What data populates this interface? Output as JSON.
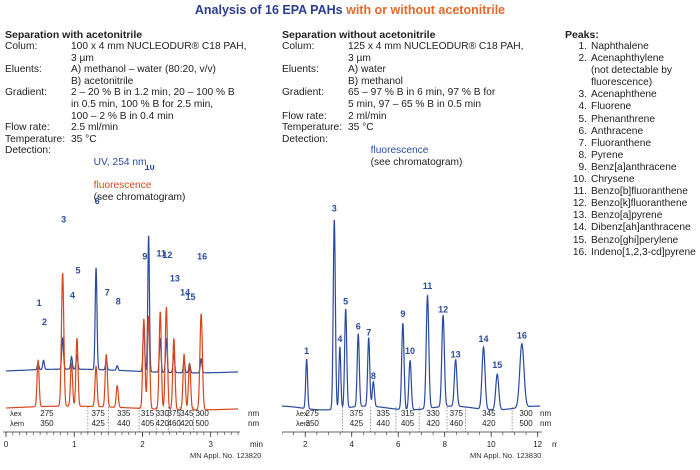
{
  "title": {
    "part1": "Analysis of 16 EPA PAHs",
    "part2": "with or without acetonitrile"
  },
  "left": {
    "heading": "Separation with acetonitrile",
    "params": [
      {
        "label": "Colum:",
        "value": "100 x 4 mm NUCLEODUR® C18 PAH,\n3 µm"
      },
      {
        "label": "Eluents:",
        "value": "A) methanol – water (80:20, v/v)\nB) acetonitrile"
      },
      {
        "label": "Gradient:",
        "value": "2 – 20 % B in 1.2 min, 20 – 100 % B\nin 0.5 min, 100 % B for 2.5 min,\n100 – 2 % B in 0.4 min"
      },
      {
        "label": "Flow rate:",
        "value": "2.5 ml/min"
      },
      {
        "label": "Temperature:",
        "value": "35 °C"
      }
    ],
    "detection_label": "Detection:",
    "detection_uv": "UV, 254 nm",
    "detection_fl": "fluorescence",
    "detection_note": "(see chromatogram)",
    "appl": "MN Appl. No. 123820"
  },
  "right": {
    "heading": "Separation without acetonitrile",
    "params": [
      {
        "label": "Colum:",
        "value": "125 x 4 mm NUCLEODUR® C18 PAH,\n3 µm"
      },
      {
        "label": "Eluents:",
        "value": "A) water\nB) methanol"
      },
      {
        "label": "Gradient:",
        "value": "65 – 97 % B in 6 min, 97 % B for\n5 min, 97 – 65 % B in 0.5 min"
      },
      {
        "label": "Flow rate:",
        "value": "2 ml/min"
      },
      {
        "label": "Temperature:",
        "value": "35 °C"
      }
    ],
    "detection_label": "Detection:",
    "detection_fl": "fluorescence",
    "detection_note": "(see chromatogram)",
    "appl": "MN Appl. No. 123830"
  },
  "peaks": {
    "heading": "Peaks:",
    "items": [
      {
        "num": "1.",
        "name": "Naphthalene"
      },
      {
        "num": "2.",
        "name": "Acenaphthylene"
      },
      {
        "num": "",
        "name": "(not detectable by"
      },
      {
        "num": "",
        "name": "fluorescence)"
      },
      {
        "num": "3.",
        "name": "Acenaphthene"
      },
      {
        "num": "4.",
        "name": "Fluorene"
      },
      {
        "num": "5.",
        "name": "Phenanthrene"
      },
      {
        "num": "6.",
        "name": "Anthracene"
      },
      {
        "num": "7.",
        "name": "Fluoranthene"
      },
      {
        "num": "8.",
        "name": "Pyrene"
      },
      {
        "num": "9.",
        "name": "Benz[a]anthracene"
      },
      {
        "num": "10.",
        "name": "Chrysene"
      },
      {
        "num": "11.",
        "name": "Benzo[b]fluoranthene"
      },
      {
        "num": "12.",
        "name": "Benzo[k]fluoranthene"
      },
      {
        "num": "13.",
        "name": "Benzo[a]pyrene"
      },
      {
        "num": "14.",
        "name": "Dibenz[ah]anthracene"
      },
      {
        "num": "15.",
        "name": "Benzo[ghi]perylene"
      },
      {
        "num": "16.",
        "name": "Indeno[1,2,3-cd]pyrene"
      }
    ]
  },
  "colors": {
    "uv": "#2a4aa0",
    "fluorescence": "#d9461b",
    "axis": "#333333"
  },
  "chart_data": [
    {
      "type": "line",
      "title": "Separation with acetonitrile",
      "xlabel": "min",
      "xlim": [
        0,
        3.4
      ],
      "ylim": [
        0,
        100
      ],
      "xticks": [
        0,
        1,
        2,
        3
      ],
      "minor_step": 0.1,
      "series": [
        {
          "name": "UV, 254 nm",
          "color": "#2a4aa0",
          "baseline": 33,
          "peaks": [
            {
              "label": "1",
              "t": 0.47,
              "h": 4,
              "w": 0.012
            },
            {
              "label": "2",
              "t": 0.55,
              "h": 6,
              "w": 0.012
            },
            {
              "label": "3",
              "t": 0.83,
              "h": 20,
              "w": 0.013
            },
            {
              "label": "4",
              "t": 0.96,
              "h": 8,
              "w": 0.012
            },
            {
              "label": "5",
              "t": 1.04,
              "h": 9,
              "w": 0.012
            },
            {
              "label": "6",
              "t": 1.32,
              "h": 66,
              "w": 0.013
            },
            {
              "label": "7",
              "t": 1.47,
              "h": 6,
              "w": 0.012
            },
            {
              "label": "8",
              "t": 1.63,
              "h": 3,
              "w": 0.012
            },
            {
              "label": "9",
              "t": 2.02,
              "h": 30,
              "w": 0.012
            },
            {
              "label": "10",
              "t": 2.09,
              "h": 88,
              "w": 0.012
            },
            {
              "label": "11",
              "t": 2.26,
              "h": 22,
              "w": 0.012
            },
            {
              "label": "12",
              "t": 2.35,
              "h": 22,
              "w": 0.012
            },
            {
              "label": "13",
              "t": 2.46,
              "h": 12,
              "w": 0.012
            },
            {
              "label": "14",
              "t": 2.61,
              "h": 8,
              "w": 0.012
            },
            {
              "label": "15",
              "t": 2.69,
              "h": 6,
              "w": 0.012
            },
            {
              "label": "16",
              "t": 2.86,
              "h": 9,
              "w": 0.013
            }
          ]
        },
        {
          "name": "fluorescence",
          "color": "#d9461b",
          "baseline": 3,
          "peaks": [
            {
              "label": "1",
              "t": 0.47,
              "h": 30,
              "w": 0.015
            },
            {
              "label": "3",
              "t": 0.83,
              "h": 86,
              "w": 0.017
            },
            {
              "label": "4",
              "t": 0.96,
              "h": 28,
              "w": 0.015
            },
            {
              "label": "5",
              "t": 1.04,
              "h": 44,
              "w": 0.015
            },
            {
              "label": "6",
              "t": 1.32,
              "h": 26,
              "w": 0.015
            },
            {
              "label": "7",
              "t": 1.47,
              "h": 34,
              "w": 0.016
            },
            {
              "label": "8",
              "t": 1.63,
              "h": 14,
              "w": 0.015
            },
            {
              "label": "9",
              "t": 2.02,
              "h": 58,
              "w": 0.016
            },
            {
              "label": "10",
              "t": 2.09,
              "h": 60,
              "w": 0.016
            },
            {
              "label": "11",
              "t": 2.26,
              "h": 63,
              "w": 0.016
            },
            {
              "label": "12",
              "t": 2.35,
              "h": 66,
              "w": 0.016
            },
            {
              "label": "13",
              "t": 2.46,
              "h": 46,
              "w": 0.016
            },
            {
              "label": "14",
              "t": 2.61,
              "h": 36,
              "w": 0.016
            },
            {
              "label": "15",
              "t": 2.69,
              "h": 30,
              "w": 0.016
            },
            {
              "label": "16",
              "t": 2.86,
              "h": 62,
              "w": 0.018
            }
          ]
        }
      ],
      "peak_labels": [
        {
          "label": "1",
          "t": 0.47,
          "y": 36
        },
        {
          "label": "2",
          "t": 0.55,
          "y": 24
        },
        {
          "label": "3",
          "t": 0.83,
          "y": 90
        },
        {
          "label": "4",
          "t": 0.96,
          "y": 41
        },
        {
          "label": "5",
          "t": 1.04,
          "y": 57
        },
        {
          "label": "6",
          "t": 1.32,
          "y": 102
        },
        {
          "label": "7",
          "t": 1.47,
          "y": 43
        },
        {
          "label": "8",
          "t": 1.63,
          "y": 37
        },
        {
          "label": "9",
          "t": 2.02,
          "y": 66
        },
        {
          "label": "10",
          "t": 2.09,
          "y": 124
        },
        {
          "label": "11",
          "t": 2.26,
          "y": 68
        },
        {
          "label": "12",
          "t": 2.35,
          "y": 67
        },
        {
          "label": "13",
          "t": 2.46,
          "y": 52
        },
        {
          "label": "14",
          "t": 2.61,
          "y": 43
        },
        {
          "label": "15",
          "t": 2.69,
          "y": 40
        },
        {
          "label": "16",
          "t": 2.86,
          "y": 66
        }
      ],
      "wavelength_program": {
        "ex_label": "λex",
        "em_label": "λem",
        "unit": "nm",
        "windows": [
          {
            "t_start": 0.0,
            "ex": "275",
            "em": "350"
          },
          {
            "t_start": 1.2,
            "ex": "375",
            "em": "425"
          },
          {
            "t_start": 1.5,
            "ex": "335",
            "em": "440"
          },
          {
            "t_start": 1.95,
            "ex": "315",
            "em": "405"
          },
          {
            "t_start": 2.2,
            "ex": "330",
            "em": "420"
          },
          {
            "t_start": 2.38,
            "ex": "375",
            "em": "460"
          },
          {
            "t_start": 2.55,
            "ex": "345",
            "em": "420"
          },
          {
            "t_start": 2.75,
            "ex": "300",
            "em": "500"
          }
        ],
        "t_end": 3.0
      }
    },
    {
      "type": "line",
      "title": "Separation without acetonitrile",
      "xlabel": "min",
      "xlim": [
        1,
        12.1
      ],
      "ylim": [
        0,
        100
      ],
      "xticks": [
        2,
        4,
        6,
        8,
        10,
        12
      ],
      "minor_step": 0.5,
      "series": [
        {
          "name": "fluorescence",
          "color": "#2a4aa0",
          "baseline": 3,
          "peaks": [
            {
              "label": "1",
              "t": 2.06,
              "h": 32,
              "w": 0.04
            },
            {
              "label": "3",
              "t": 3.25,
              "h": 123,
              "w": 0.045
            },
            {
              "label": "4",
              "t": 3.49,
              "h": 40,
              "w": 0.04
            },
            {
              "label": "5",
              "t": 3.74,
              "h": 64,
              "w": 0.045
            },
            {
              "label": "6",
              "t": 4.28,
              "h": 47,
              "w": 0.045
            },
            {
              "label": "7",
              "t": 4.73,
              "h": 44,
              "w": 0.045
            },
            {
              "label": "8",
              "t": 4.93,
              "h": 16,
              "w": 0.045
            },
            {
              "label": "9",
              "t": 6.2,
              "h": 56,
              "w": 0.05
            },
            {
              "label": "10",
              "t": 6.51,
              "h": 32,
              "w": 0.05
            },
            {
              "label": "11",
              "t": 7.26,
              "h": 73,
              "w": 0.055
            },
            {
              "label": "12",
              "t": 7.93,
              "h": 59,
              "w": 0.055
            },
            {
              "label": "13",
              "t": 8.47,
              "h": 30,
              "w": 0.055
            },
            {
              "label": "14",
              "t": 9.67,
              "h": 40,
              "w": 0.065
            },
            {
              "label": "15",
              "t": 10.26,
              "h": 23,
              "w": 0.065
            },
            {
              "label": "16",
              "t": 11.32,
              "h": 41,
              "w": 0.09
            }
          ]
        }
      ],
      "peak_labels": [
        {
          "label": "1",
          "t": 2.06,
          "y": 36
        },
        {
          "label": "3",
          "t": 3.25,
          "y": 128
        },
        {
          "label": "4",
          "t": 3.49,
          "y": 44
        },
        {
          "label": "5",
          "t": 3.74,
          "y": 68
        },
        {
          "label": "6",
          "t": 4.28,
          "y": 52
        },
        {
          "label": "7",
          "t": 4.73,
          "y": 48
        },
        {
          "label": "8",
          "t": 4.93,
          "y": 20
        },
        {
          "label": "9",
          "t": 6.2,
          "y": 60
        },
        {
          "label": "10",
          "t": 6.51,
          "y": 36
        },
        {
          "label": "11",
          "t": 7.26,
          "y": 78
        },
        {
          "label": "12",
          "t": 7.93,
          "y": 63
        },
        {
          "label": "13",
          "t": 8.47,
          "y": 34
        },
        {
          "label": "14",
          "t": 9.67,
          "y": 44
        },
        {
          "label": "15",
          "t": 10.26,
          "y": 27
        },
        {
          "label": "16",
          "t": 11.32,
          "y": 46
        }
      ],
      "wavelength_program": {
        "ex_label": "λex",
        "em_label": "λem",
        "unit": "nm",
        "windows": [
          {
            "t_start": 1.0,
            "ex": "275",
            "em": "350"
          },
          {
            "t_start": 3.6,
            "ex": "375",
            "em": "425"
          },
          {
            "t_start": 4.8,
            "ex": "335",
            "em": "440"
          },
          {
            "t_start": 5.9,
            "ex": "315",
            "em": "405"
          },
          {
            "t_start": 6.9,
            "ex": "330",
            "em": "420"
          },
          {
            "t_start": 8.1,
            "ex": "375",
            "em": "460"
          },
          {
            "t_start": 8.9,
            "ex": "345",
            "em": "420"
          },
          {
            "t_start": 10.9,
            "ex": "300",
            "em": "500"
          }
        ],
        "t_end": 12.1
      }
    }
  ]
}
